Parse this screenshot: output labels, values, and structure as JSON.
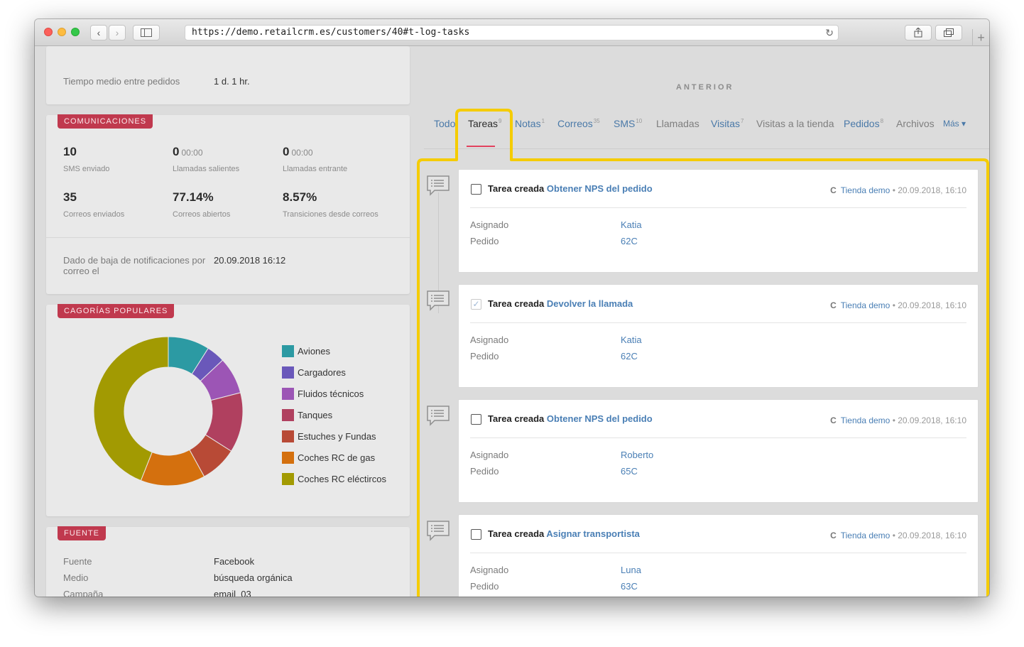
{
  "browser": {
    "url": "https://demo.retailcrm.es/customers/40#t-log-tasks",
    "back_icon": "chevron-left-icon",
    "forward_icon": "chevron-right-icon",
    "sidebar_icon": "sidebar-icon",
    "reload_icon": "reload-icon",
    "share_icon": "share-icon",
    "tabs_icon": "tabs-icon",
    "newtab_icon": "plus-icon"
  },
  "left": {
    "stats_top": {
      "label": "Tiempo medio entre pedidos",
      "value": "1 d. 1 hr."
    },
    "comunicaciones": {
      "title": "COMUNICACIONES",
      "stats": [
        {
          "value": "10",
          "small": "",
          "label": "SMS enviado"
        },
        {
          "value": "0",
          "small": "00:00",
          "label": "Llamadas salientes"
        },
        {
          "value": "0",
          "small": "00:00",
          "label": "Llamadas entrante"
        },
        {
          "value": "35",
          "small": "",
          "label": "Correos enviados"
        },
        {
          "value": "77.14%",
          "small": "",
          "label": "Correos abiertos"
        },
        {
          "value": "8.57%",
          "small": "",
          "label": "Transiciones desde correos"
        }
      ],
      "unsub_label": "Dado de baja de notificaciones por correo el",
      "unsub_value": "20.09.2018 16:12"
    },
    "categorias": {
      "title": "CAGORÍAS POPULARES",
      "chart_data": {
        "type": "pie",
        "categories": [
          "Aviones",
          "Cargadores",
          "Fluidos técnicos",
          "Tanques",
          "Estuches y Fundas",
          "Coches RC de gas",
          "Coches RC eléctircos"
        ],
        "values": [
          9,
          4,
          8,
          13,
          8,
          14,
          44
        ],
        "colors": [
          "#2c9aa3",
          "#6a58ba",
          "#9c55b5",
          "#b0405f",
          "#b84a36",
          "#d4700e",
          "#a29a02"
        ],
        "donut": true
      }
    },
    "fuente": {
      "title": "FUENTE",
      "rows": [
        {
          "label": "Fuente",
          "value": "Facebook"
        },
        {
          "label": "Medio",
          "value": "búsqueda orgánica"
        },
        {
          "label": "Campaña",
          "value": "email_03"
        }
      ]
    }
  },
  "right": {
    "section_title": "ANTERIOR",
    "tabs": [
      {
        "label": "Todo",
        "count": ""
      },
      {
        "label": "Tareas",
        "count": "9"
      },
      {
        "label": "Notas",
        "count": "1"
      },
      {
        "label": "Correos",
        "count": "35"
      },
      {
        "label": "SMS",
        "count": "10"
      },
      {
        "label": "Llamadas",
        "count": ""
      },
      {
        "label": "Visitas",
        "count": "7"
      },
      {
        "label": "Visitas a la tienda",
        "count": ""
      },
      {
        "label": "Pedidos",
        "count": "8"
      },
      {
        "label": "Archivos",
        "count": ""
      },
      {
        "label": "Más ▾",
        "count": ""
      }
    ],
    "highlight_color": "#f5cc00",
    "tasks": [
      {
        "prefix": "Tarea creada",
        "title": "Obtener NPS del pedido",
        "completed": false,
        "store": "Tienda demo",
        "date": "20.09.2018, 16:10",
        "assigned_label": "Asignado",
        "assigned": "Katia",
        "order_label": "Pedido",
        "order": "62C"
      },
      {
        "prefix": "Tarea creada",
        "title": "Devolver la llamada",
        "completed": true,
        "store": "Tienda demo",
        "date": "20.09.2018, 16:10",
        "assigned_label": "Asignado",
        "assigned": "Katia",
        "order_label": "Pedido",
        "order": "62C"
      },
      {
        "prefix": "Tarea creada",
        "title": "Obtener NPS del pedido",
        "completed": false,
        "store": "Tienda demo",
        "date": "20.09.2018, 16:10",
        "assigned_label": "Asignado",
        "assigned": "Roberto",
        "order_label": "Pedido",
        "order": "65C"
      },
      {
        "prefix": "Tarea creada",
        "title": "Asignar transportista",
        "completed": false,
        "store": "Tienda demo",
        "date": "20.09.2018, 16:10",
        "assigned_label": "Asignado",
        "assigned": "Luna",
        "order_label": "Pedido",
        "order": "63C"
      }
    ]
  }
}
